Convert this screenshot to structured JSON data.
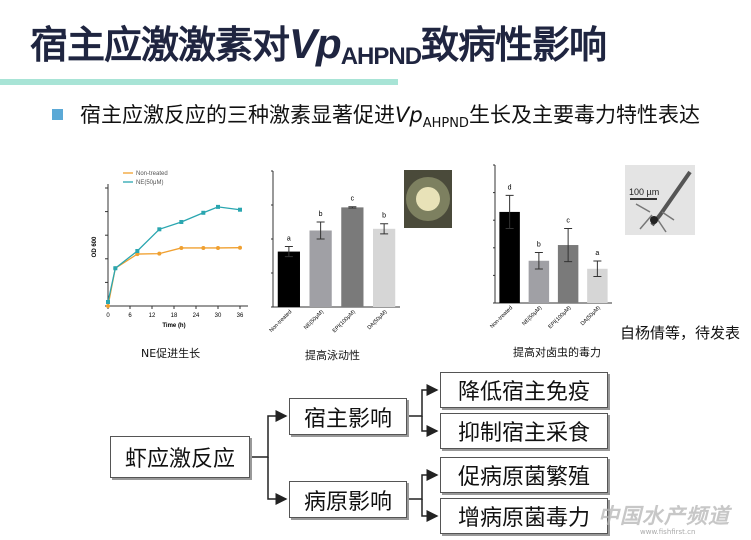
{
  "title": {
    "pre": "宿主应激激素对",
    "italic": "Vp",
    "sub": "AHPND",
    "post": "致病性影响"
  },
  "bullet": {
    "pre": "宿主应激反应的三种激素显著促进",
    "italic": "Vp",
    "sub": "AHPND",
    "post": "生长及主要毒力特性表达"
  },
  "chart_data": [
    {
      "type": "line",
      "title": "",
      "xlabel": "Time (h)",
      "ylabel": "OD 600",
      "caption": "NE促进生长",
      "x": [
        0,
        2,
        8,
        14,
        20,
        26,
        30,
        36
      ],
      "xticks": [
        "0",
        "6",
        "12",
        "18",
        "24",
        "30",
        "36"
      ],
      "xlim": [
        0,
        36
      ],
      "ylim": [
        0,
        5
      ],
      "series": [
        {
          "name": "Non-treated",
          "color": "#f0a030",
          "values": [
            0,
            1.6,
            2.2,
            2.22,
            2.46,
            2.46,
            2.46,
            2.47
          ]
        },
        {
          "name": "NE(50μM)",
          "color": "#2aa6b0",
          "values": [
            0.17,
            1.6,
            2.33,
            3.25,
            3.56,
            3.95,
            4.2,
            4.08
          ]
        }
      ]
    },
    {
      "type": "bar",
      "caption": "提高泳动性",
      "ylim": [
        0,
        4
      ],
      "categories": [
        "Non-treated",
        "NE(50μM)",
        "EPI(100μM)",
        "DA(50μM)"
      ],
      "values": [
        1.63,
        2.25,
        2.93,
        2.3
      ],
      "errors": [
        0.15,
        0.25,
        0.02,
        0.15
      ],
      "letters": [
        "a",
        "b",
        "c",
        "b"
      ],
      "colors": [
        "#000000",
        "#a0a0a5",
        "#7a7a7a",
        "#d6d6d6"
      ]
    },
    {
      "type": "bar",
      "caption": "提高对卤虫的毒力",
      "ylim": [
        0,
        5
      ],
      "categories": [
        "Non-treated",
        "NE(50μM)",
        "EPI(100μM)",
        "DA(50μM)"
      ],
      "values": [
        3.3,
        1.53,
        2.1,
        1.24
      ],
      "errors": [
        0.6,
        0.3,
        0.6,
        0.28
      ],
      "letters": [
        "d",
        "b",
        "c",
        "a"
      ],
      "colors": [
        "#000000",
        "#a0a0a5",
        "#7a7a7a",
        "#d6d6d6"
      ]
    }
  ],
  "photo": {
    "scale_label": "100 µm"
  },
  "credit": "自杨倩等，待发表",
  "diagram": {
    "root": "虾应激反应",
    "host": "宿主影响",
    "pathogen": "病原影响",
    "host_items": [
      "降低宿主免疫",
      "抑制宿主采食"
    ],
    "pathogen_items": [
      "促病原菌繁殖",
      "增病原菌毒力"
    ]
  },
  "watermark": {
    "text": "中国水产频道",
    "url": "www.fishfirst.cn"
  }
}
